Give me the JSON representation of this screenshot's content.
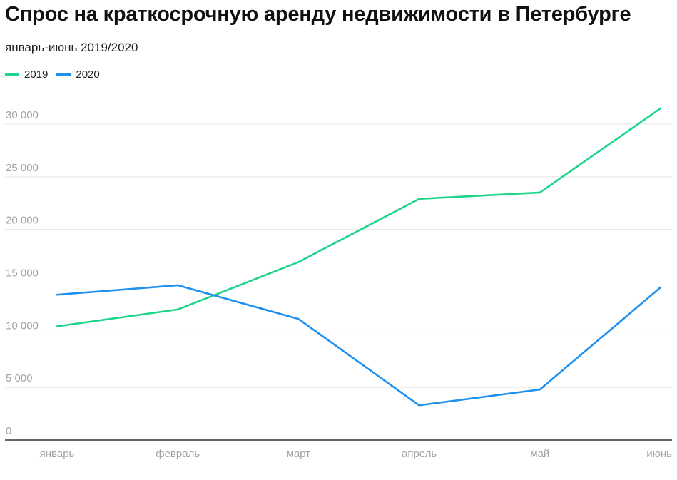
{
  "chart_data": {
    "type": "line",
    "title": "Спрос на краткосрочную аренду недвижимости в Петербурге",
    "subtitle": "январь-июнь 2019/2020",
    "xlabel": "",
    "ylabel": "",
    "categories": [
      "январь",
      "февраль",
      "март",
      "апрель",
      "май",
      "июнь"
    ],
    "ylim": [
      0,
      30000
    ],
    "yticks": [
      0,
      5000,
      10000,
      15000,
      20000,
      25000,
      30000
    ],
    "ytick_labels": [
      "0",
      "5 000",
      "10 000",
      "15 000",
      "20 000",
      "25 000",
      "30 000"
    ],
    "grid": true,
    "legend_position": "top-left",
    "series": [
      {
        "name": "2019",
        "color": "#1ed48b",
        "values": [
          10800,
          12400,
          16900,
          22900,
          23500,
          31500
        ]
      },
      {
        "name": "2020",
        "color": "#1e90f0",
        "values": [
          13800,
          14700,
          11500,
          3300,
          4800,
          14500
        ]
      }
    ]
  }
}
